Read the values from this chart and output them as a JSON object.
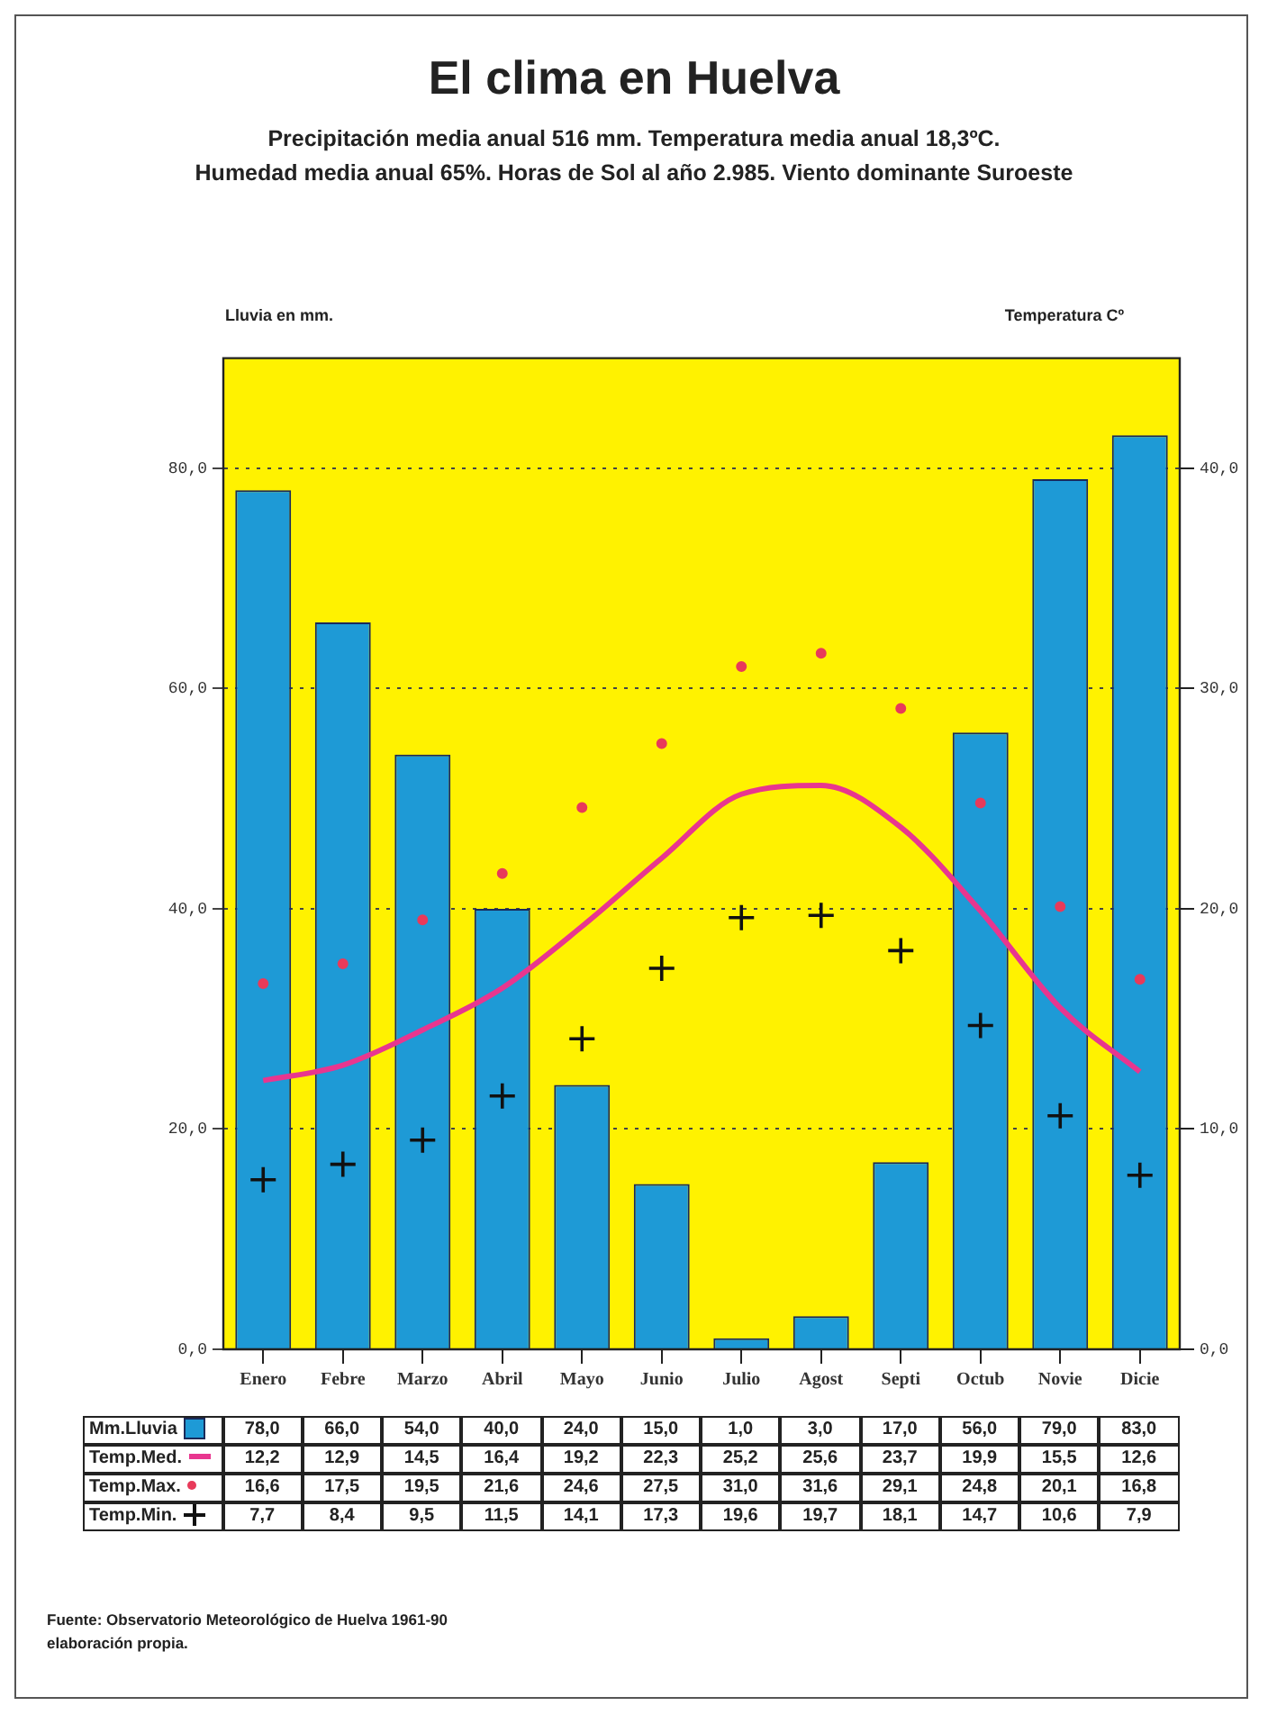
{
  "chart_data": {
    "type": "bar",
    "title": "El clima en Huelva",
    "subtitle": "Precipitación media anual 516 mm. Temperatura media anual 18,3ºC.\nHumedad media anual 65%. Horas de Sol al año 2.985. Viento dominante Suroeste",
    "ylabel": "Lluvia en mm.",
    "y2label": "Temperatura Cº",
    "categories": [
      "Enero",
      "Febre",
      "Marzo",
      "Abril",
      "Mayo",
      "Junio",
      "Julio",
      "Agost",
      "Septi",
      "Octub",
      "Novie",
      "Dicie"
    ],
    "series": [
      {
        "name": "Mm.Lluvia",
        "color": "#1e9ad6",
        "values": [
          78,
          66,
          54,
          40,
          24,
          15,
          1,
          3,
          17,
          56,
          79,
          83
        ],
        "value_labels": [
          "78,0",
          "66,0",
          "54,0",
          "40,0",
          "24,0",
          "15,0",
          "1,0",
          "3,0",
          "17,0",
          "56,0",
          "79,0",
          "83,0"
        ]
      },
      {
        "name": "Temp.Med.",
        "type": "line",
        "axis": "y2",
        "color": "#e8368f",
        "marker": "none",
        "values": [
          12.2,
          12.9,
          14.5,
          16.4,
          19.2,
          22.3,
          25.2,
          25.6,
          23.7,
          19.9,
          15.5,
          12.6
        ],
        "value_labels": [
          "12,2",
          "12,9",
          "14,5",
          "16,4",
          "19,2",
          "22,3",
          "25,2",
          "25,6",
          "23,7",
          "19,9",
          "15,5",
          "12,6"
        ]
      },
      {
        "name": "Temp.Max.",
        "type": "scatter",
        "axis": "y2",
        "color": "#e83a5a",
        "marker": "circle",
        "values": [
          16.6,
          17.5,
          19.5,
          21.6,
          24.6,
          27.5,
          31.0,
          31.6,
          29.1,
          24.8,
          20.1,
          16.8
        ],
        "value_labels": [
          "16,6",
          "17,5",
          "19,5",
          "21,6",
          "24,6",
          "27,5",
          "31,0",
          "31,6",
          "29,1",
          "24,8",
          "20,1",
          "16,8"
        ]
      },
      {
        "name": "Temp.Min.",
        "type": "scatter",
        "axis": "y2",
        "color": "#111111",
        "marker": "cross",
        "values": [
          7.7,
          8.4,
          9.5,
          11.5,
          14.1,
          17.3,
          19.6,
          19.7,
          18.1,
          14.7,
          10.6,
          7.9
        ],
        "value_labels": [
          "7,7",
          "8,4",
          "9,5",
          "11,5",
          "14,1",
          "17,3",
          "19,6",
          "19,7",
          "18,1",
          "14,7",
          "10,6",
          "7,9"
        ]
      }
    ],
    "ylim": [
      0,
      90
    ],
    "yticks": [
      {
        "value": 0,
        "label": "0,0"
      },
      {
        "value": 20,
        "label": "20,0"
      },
      {
        "value": 40,
        "label": "40,0"
      },
      {
        "value": 60,
        "label": "60,0"
      },
      {
        "value": 80,
        "label": "80,0"
      }
    ],
    "y2lim": [
      0,
      45
    ],
    "y2ticks": [
      {
        "value": 0,
        "label": "0,0"
      },
      {
        "value": 10,
        "label": "10,0"
      },
      {
        "value": 20,
        "label": "20,0"
      },
      {
        "value": 30,
        "label": "30,0"
      },
      {
        "value": 40,
        "label": "40,0"
      }
    ],
    "grid": "y",
    "legend": "bottom",
    "annotations": [
      "Fuente: Observatorio Meteorológico de Huelva 1961-90\nelaboración propia."
    ]
  }
}
